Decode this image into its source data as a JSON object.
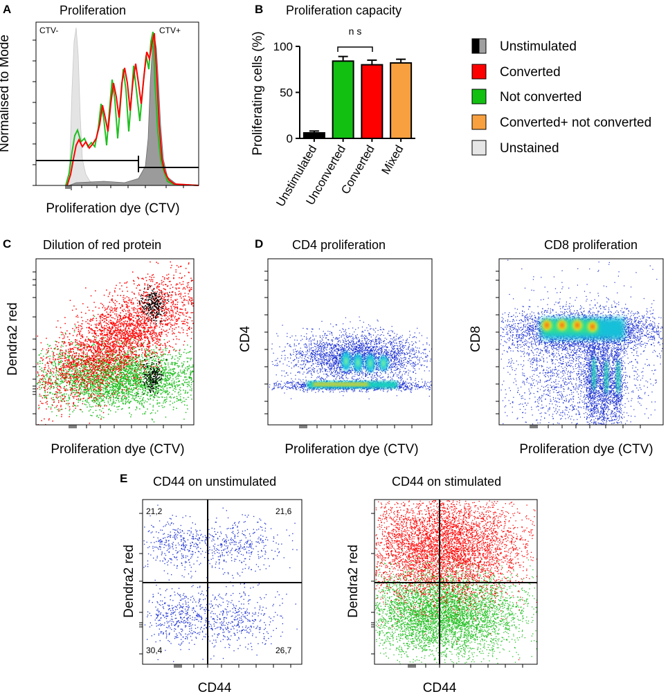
{
  "colors": {
    "converted": "#ff0000",
    "not_converted": "#1fbf1f",
    "mixed": "#f8a040",
    "unstained": "#e6e6e6",
    "unstimulated_dark": "#000000",
    "unstimulated_grey": "#a0a0a0",
    "unconverted_bar": "#12c012",
    "scatter_blue": "#1a2fd1",
    "flow_hist_dark": "#888888",
    "flow_hist_light": "#d9d9d9"
  },
  "panel_a": {
    "letter": "A",
    "title": "Proliferation",
    "xlabel": "Proliferation dye (CTV)",
    "ylabel": "Normalised to Mode",
    "gate_left": "CTV-",
    "gate_right": "CTV+"
  },
  "panel_b": {
    "letter": "B",
    "ns_label": "n s"
  },
  "panel_c": {
    "letter": "C",
    "title": "Dilution of red protein",
    "xlabel": "Proliferation dye (CTV)",
    "ylabel": "Dendra2 red"
  },
  "panel_d": {
    "letter": "D",
    "left_title": "CD4 proliferation",
    "left_xlabel": "Proliferation dye (CTV)",
    "left_ylabel": "CD4",
    "right_title": "CD8 proliferation",
    "right_xlabel": "Proliferation dye (CTV)",
    "right_ylabel": "CD8"
  },
  "panel_e": {
    "letter": "E",
    "left_title": "CD44 on unstimulated",
    "left_xlabel": "CD44",
    "left_ylabel": "Dendra2 red",
    "quadrants": {
      "top_left": "21,2",
      "top_right": "21,6",
      "bottom_left": "30,4",
      "bottom_right": "26,7"
    },
    "right_title": "CD44 on stimulated",
    "right_xlabel": "CD44",
    "right_ylabel": "Dendra2 red"
  },
  "legend": {
    "items": [
      {
        "label": "Unstimulated",
        "swatch": "split"
      },
      {
        "label": "Converted",
        "swatch": "converted"
      },
      {
        "label": "Not converted",
        "swatch": "not_converted"
      },
      {
        "label": "Converted+ not converted",
        "swatch": "mixed"
      },
      {
        "label": "Unstained",
        "swatch": "unstained"
      }
    ]
  },
  "chart_data": {
    "type": "bar",
    "title": "Proliferation capacity",
    "xlabel": "",
    "ylabel": "Proliferating cells (%)",
    "ylim": [
      0,
      100
    ],
    "yticks": [
      0,
      50,
      100
    ],
    "categories": [
      "Unstimulated",
      "Unconverted",
      "Converted",
      "Mixed"
    ],
    "values": [
      6,
      84,
      80,
      82
    ],
    "errors": [
      2,
      5,
      5,
      4
    ],
    "bar_colors": [
      "#000000",
      "#12c012",
      "#ff0000",
      "#f8a040"
    ],
    "annotations": [
      {
        "between": [
          "Unconverted",
          "Converted"
        ],
        "text": "n s"
      }
    ]
  }
}
